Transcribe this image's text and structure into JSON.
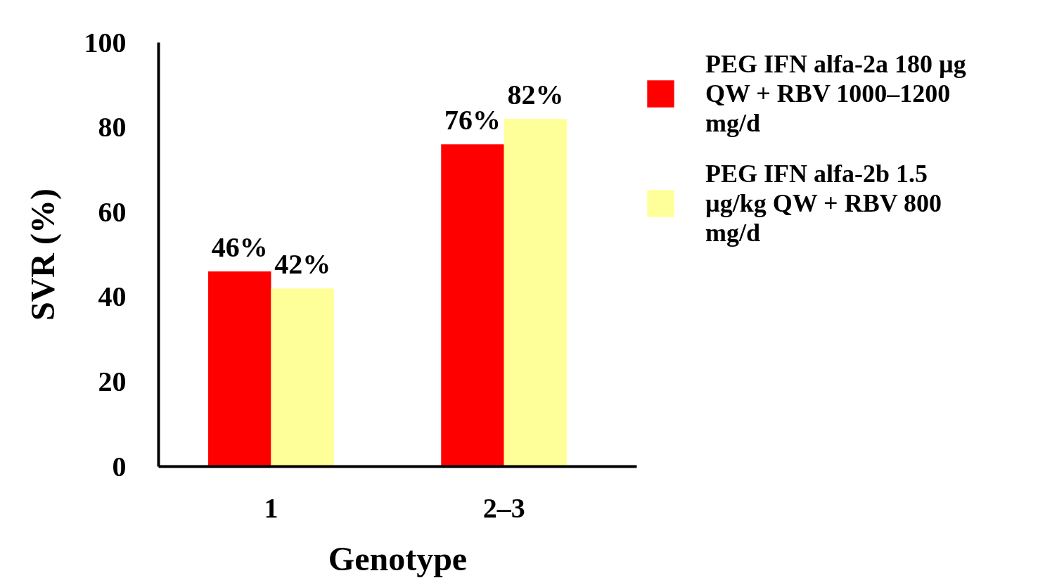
{
  "chart_data": {
    "type": "bar",
    "xlabel": "Genotype",
    "ylabel": "SVR (%)",
    "categories": [
      "1",
      "2–3"
    ],
    "series": [
      {
        "name": "PEG IFN alfa-2a 180 µg QW + RBV 1000–1200 mg/d",
        "color": "#ff0000",
        "values": [
          46,
          76
        ],
        "value_labels": [
          "46%",
          "76%"
        ]
      },
      {
        "name": "PEG IFN alfa-2b 1.5 µg/kg QW + RBV 800 mg/d",
        "color": "#ffff99",
        "values": [
          42,
          82
        ],
        "value_labels": [
          "42%",
          "82%"
        ]
      }
    ],
    "ylim": [
      0,
      100
    ],
    "yticks": [
      0,
      20,
      40,
      60,
      80,
      100
    ],
    "grid": false,
    "legend": "top right"
  }
}
